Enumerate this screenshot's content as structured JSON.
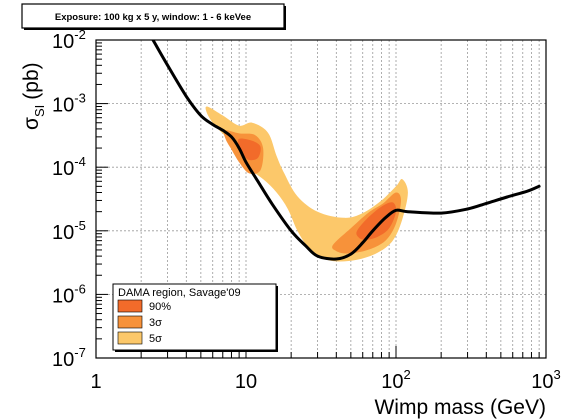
{
  "chart_data": {
    "type": "line",
    "header": "Exposure: 100 kg x 5 y, window: 1 - 6 keVee",
    "xlabel": "Wimp mass (GeV)",
    "ylabel": "σ",
    "ylabel_sub": "SI",
    "ylabel_unit": "(pb)",
    "x_scale": "log",
    "y_scale": "log",
    "xlim": [
      1,
      1000
    ],
    "ylim": [
      1e-07,
      0.01
    ],
    "grid": "dotted",
    "x_ticks": [
      {
        "value": 1,
        "base": "1",
        "exp": ""
      },
      {
        "value": 10,
        "base": "10",
        "exp": ""
      },
      {
        "value": 100,
        "base": "10",
        "exp": "2"
      },
      {
        "value": 1000,
        "base": "10",
        "exp": "3"
      }
    ],
    "y_ticks": [
      {
        "value": 1e-07,
        "base": "10",
        "exp": "-7"
      },
      {
        "value": 1e-06,
        "base": "10",
        "exp": "-6"
      },
      {
        "value": 1e-05,
        "base": "10",
        "exp": "-5"
      },
      {
        "value": 0.0001,
        "base": "10",
        "exp": "-4"
      },
      {
        "value": 0.001,
        "base": "10",
        "exp": "-3"
      },
      {
        "value": 0.01,
        "base": "10",
        "exp": "-2"
      }
    ],
    "series": [
      {
        "type": "line",
        "color": "#000000",
        "points": [
          [
            2.4,
            0.01
          ],
          [
            3,
            0.004
          ],
          [
            4,
            0.0013
          ],
          [
            5,
            0.00065
          ],
          [
            6,
            0.00047
          ],
          [
            7,
            0.00038
          ],
          [
            8,
            0.0003
          ],
          [
            9,
            0.0002
          ],
          [
            10,
            0.00012
          ],
          [
            12,
            6e-05
          ],
          [
            15,
            2.6e-05
          ],
          [
            20,
            1e-05
          ],
          [
            25,
            5.8e-06
          ],
          [
            30,
            4e-06
          ],
          [
            40,
            3.6e-06
          ],
          [
            50,
            4.3e-06
          ],
          [
            60,
            6.5e-06
          ],
          [
            70,
            1e-05
          ],
          [
            85,
            1.6e-05
          ],
          [
            100,
            2.1e-05
          ],
          [
            120,
            2e-05
          ],
          [
            200,
            1.9e-05
          ],
          [
            300,
            2.2e-05
          ],
          [
            400,
            2.7e-05
          ],
          [
            550,
            3.4e-05
          ],
          [
            750,
            4.2e-05
          ],
          [
            900,
            5e-05
          ]
        ]
      }
    ],
    "regions": {
      "title": "DAMA region, Savage'09",
      "entries": [
        {
          "label": "90%",
          "color": "#f26b2a"
        },
        {
          "label": "3σ",
          "color": "#f7923a"
        },
        {
          "label": "5σ",
          "color": "#fcc86a"
        }
      ],
      "contours": {
        "5sigma": [
          [
            [
              5.5,
              0.0009
            ],
            [
              7,
              0.00065
            ],
            [
              9,
              0.00045
            ],
            [
              11,
              0.0005
            ],
            [
              14,
              0.00035
            ],
            [
              16,
              0.00015
            ],
            [
              18,
              8e-05
            ],
            [
              22,
              3.5e-05
            ],
            [
              30,
              2e-05
            ],
            [
              45,
              1.6e-05
            ],
            [
              60,
              1.9e-05
            ],
            [
              80,
              3e-05
            ],
            [
              100,
              5e-05
            ],
            [
              110,
              6.5e-05
            ],
            [
              120,
              4e-05
            ],
            [
              110,
              1.5e-05
            ],
            [
              95,
              7e-06
            ],
            [
              75,
              4.5e-06
            ],
            [
              55,
              3.5e-06
            ],
            [
              40,
              3.3e-06
            ],
            [
              32,
              3.8e-06
            ],
            [
              26,
              5.5e-06
            ],
            [
              22,
              1e-05
            ],
            [
              19,
              2.2e-05
            ],
            [
              16,
              4e-05
            ],
            [
              13,
              6.5e-05
            ],
            [
              10,
              0.0001
            ],
            [
              8.5,
              0.00015
            ],
            [
              7.5,
              0.00028
            ],
            [
              6.2,
              0.00045
            ],
            [
              5.5,
              0.0007
            ]
          ]
        ],
        "3sigma": [
          [
            [
              7.2,
              0.00038
            ],
            [
              9,
              0.00034
            ],
            [
              11.5,
              0.00032
            ],
            [
              13,
              0.0002
            ],
            [
              12.5,
              9e-05
            ],
            [
              10.5,
              8e-05
            ],
            [
              9,
              0.00012
            ],
            [
              8,
              0.00019
            ],
            [
              7.3,
              0.00028
            ]
          ],
          [
            [
              38,
              6e-06
            ],
            [
              50,
              1.1e-05
            ],
            [
              65,
              1.9e-05
            ],
            [
              82,
              2.7e-05
            ],
            [
              100,
              4e-05
            ],
            [
              108,
              3e-05
            ],
            [
              100,
              1.3e-05
            ],
            [
              85,
              7e-06
            ],
            [
              65,
              5e-06
            ],
            [
              48,
              4.4e-06
            ],
            [
              40,
              4.8e-06
            ]
          ]
        ],
        "90": [
          [
            [
              9,
              0.00028
            ],
            [
              11,
              0.00026
            ],
            [
              12.5,
              0.00021
            ],
            [
              12,
              0.00014
            ],
            [
              10.5,
              0.00013
            ],
            [
              9.5,
              0.00016
            ],
            [
              9,
              0.00021
            ]
          ],
          [
            [
              55,
              1e-05
            ],
            [
              65,
              1.6e-05
            ],
            [
              80,
              2.4e-05
            ],
            [
              95,
              2.8e-05
            ],
            [
              100,
              2e-05
            ],
            [
              90,
              1.1e-05
            ],
            [
              75,
              8e-06
            ],
            [
              62,
              7.2e-06
            ],
            [
              56,
              8e-06
            ]
          ]
        ]
      }
    }
  }
}
